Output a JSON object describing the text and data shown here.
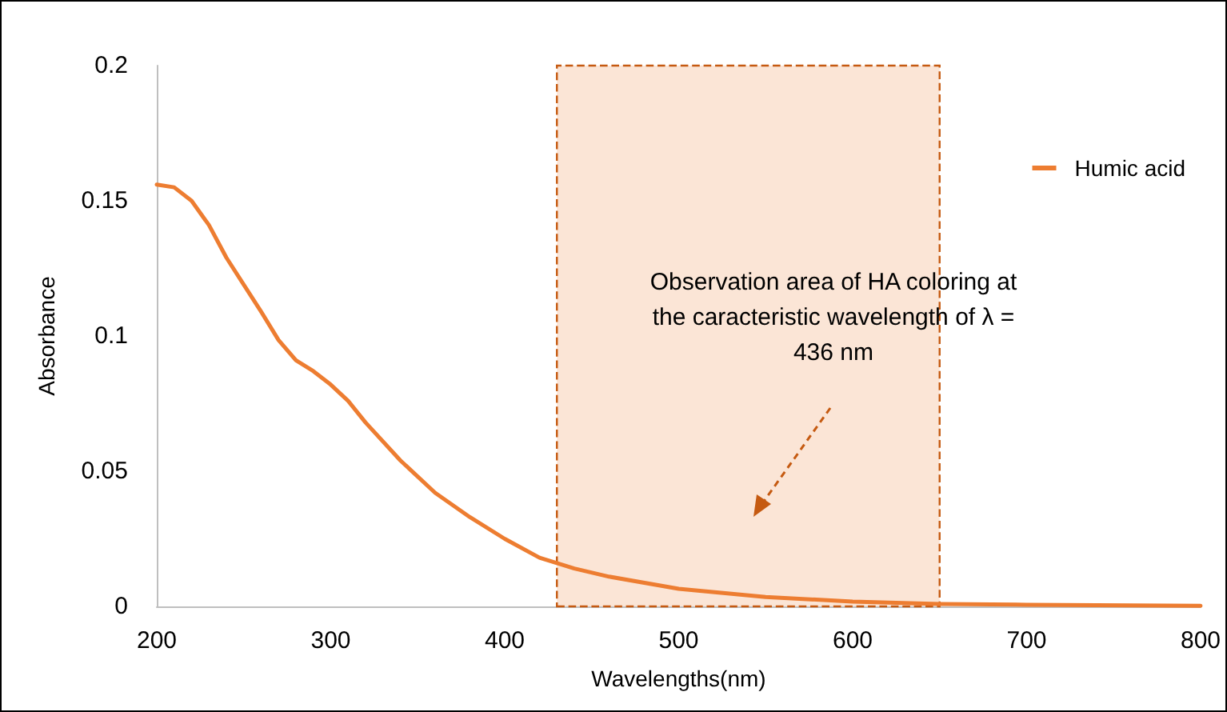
{
  "chart_data": {
    "type": "line",
    "xlabel": "Wavelengths(nm)",
    "ylabel": "Absorbance",
    "x": [
      200,
      210,
      220,
      230,
      240,
      250,
      260,
      270,
      280,
      290,
      300,
      310,
      320,
      340,
      360,
      380,
      400,
      420,
      440,
      460,
      500,
      550,
      600,
      650,
      700,
      800
    ],
    "series": [
      {
        "name": "Humic acid",
        "color": "#ed7d31",
        "values": [
          0.156,
          0.155,
          0.15,
          0.141,
          0.129,
          0.119,
          0.109,
          0.0985,
          0.091,
          0.087,
          0.082,
          0.076,
          0.068,
          0.054,
          0.042,
          0.033,
          0.025,
          0.018,
          0.014,
          0.011,
          0.0065,
          0.0035,
          0.0018,
          0.0009,
          0.0006,
          0.0002
        ]
      }
    ],
    "xlim": [
      200,
      800
    ],
    "xticks": [
      200,
      300,
      400,
      500,
      600,
      700,
      800
    ],
    "ylim": [
      0,
      0.2
    ],
    "yticks": [
      0,
      0.05,
      0.1,
      0.15,
      0.2
    ],
    "bands": [
      {
        "axis": "x",
        "from": 430,
        "to": 650,
        "label": "Observation area of HA coloring at the caracteristic wavelength of λ = 436 nm",
        "color": "#fbe5d6"
      }
    ],
    "grid": false,
    "legend": "top right",
    "marker": "none",
    "line_style": "solid"
  }
}
